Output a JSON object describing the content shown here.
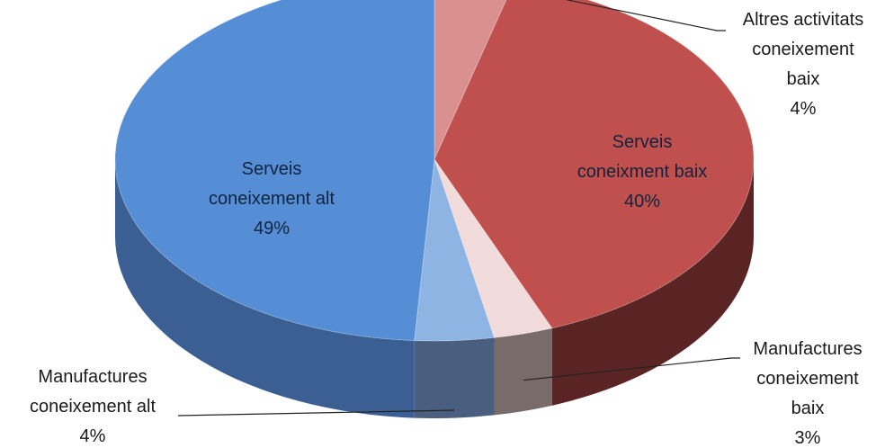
{
  "chart_data": {
    "type": "pie",
    "title": "",
    "categories": [
      "Altres activitats coneixement baix",
      "Serveis coneixment baix",
      "Manufactures coneixement baix",
      "Manufactures coneixement alt",
      "Serveis coneixement alt"
    ],
    "values": [
      4,
      40,
      3,
      4,
      49
    ],
    "label_lines": [
      [
        "Altres activitats",
        "coneixement",
        "baix",
        "4%"
      ],
      [
        "Serveis",
        "coneixment baix",
        "40%"
      ],
      [
        "Manufactures",
        "coneixement",
        "baix",
        "3%"
      ],
      [
        "Manufactures",
        "coneixement alt",
        "4%"
      ],
      [
        "Serveis",
        "coneixement alt",
        "49%"
      ]
    ],
    "colors": [
      "#d9908e",
      "#c0504d",
      "#f2dcdb",
      "#8eb4e3",
      "#558ed5"
    ],
    "side_colors": [
      "#8a5655",
      "#5a2424",
      "#7a6b6b",
      "#4a5f7f",
      "#3b5f93"
    ],
    "style": "3d-exploded-none"
  }
}
